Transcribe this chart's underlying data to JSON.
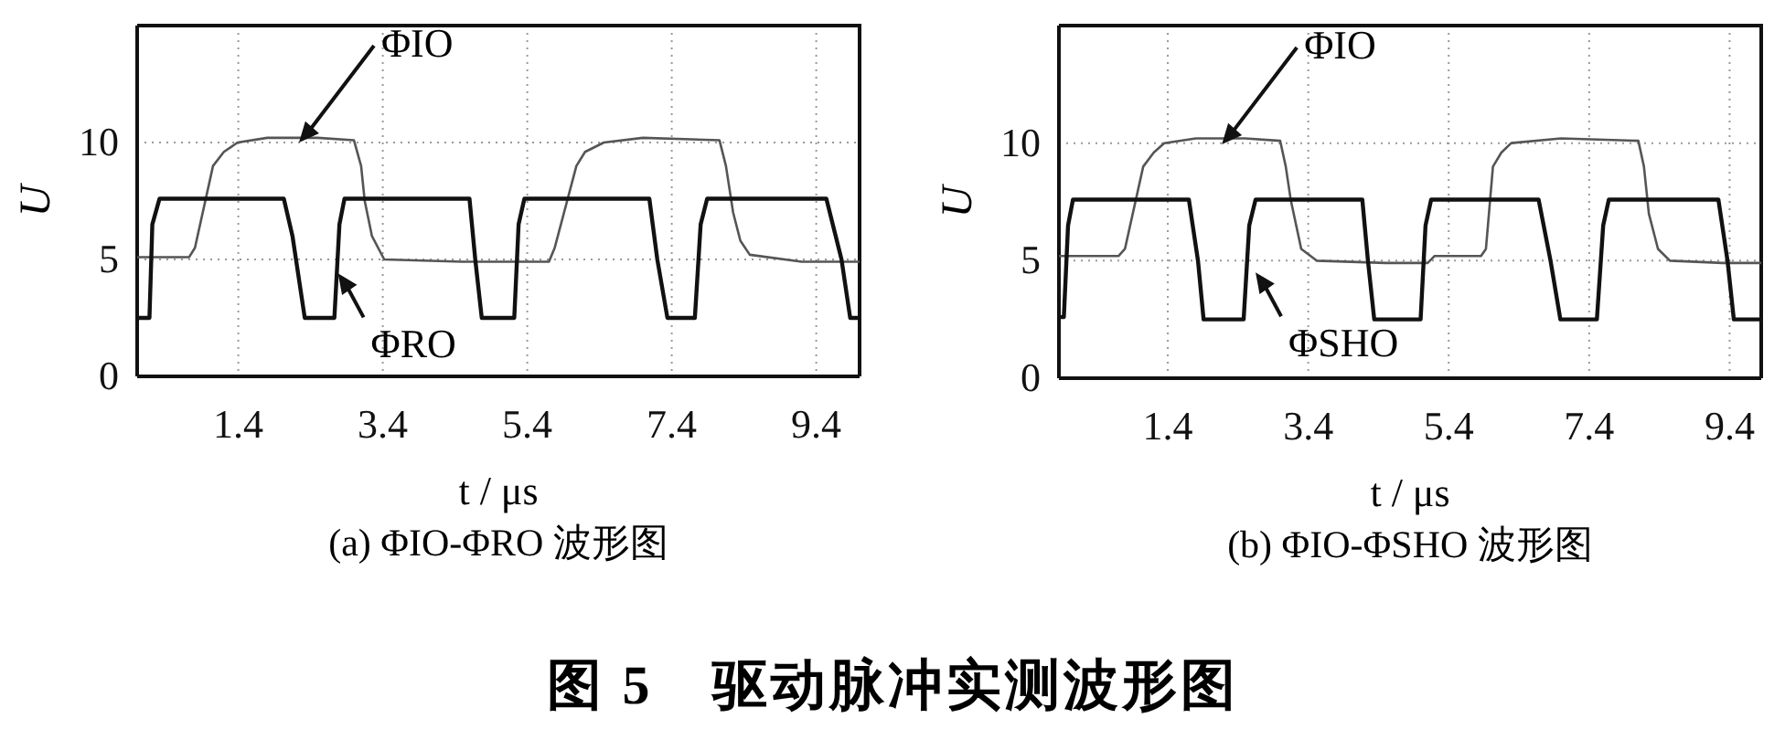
{
  "chart_data": [
    {
      "type": "line",
      "title": "(a) ΦIO-ΦRO 波形图",
      "xlabel": "t / μs",
      "ylabel": "U",
      "xlim": [
        0,
        10
      ],
      "xticks": [
        1.4,
        3.4,
        5.4,
        7.4,
        9.4
      ],
      "ylim": [
        0,
        15
      ],
      "yticks": [
        0,
        5,
        10
      ],
      "grid": true,
      "line_style": "solid",
      "series": [
        {
          "color": "#555555",
          "x": [
            0,
            0.72,
            0.8,
            1.05,
            1.2,
            1.39,
            1.8,
            2.5,
            3.0,
            3.1,
            3.15,
            3.25,
            3.42,
            4.5,
            5.7,
            5.78,
            6.08,
            6.2,
            6.46,
            7.0,
            8.06,
            8.15,
            8.25,
            8.35,
            8.48,
            9.2,
            10
          ],
          "values": [
            5.1,
            5.1,
            5.5,
            9,
            9.6,
            10,
            10.2,
            10.2,
            10.1,
            9,
            7.5,
            6,
            5.0,
            4.9,
            4.9,
            5.5,
            9,
            9.6,
            10,
            10.2,
            10.1,
            9,
            7,
            5.8,
            5.2,
            4.9,
            4.9
          ]
        },
        {
          "color": "#111111",
          "x": [
            0,
            0.17,
            0.21,
            0.31,
            2.03,
            2.15,
            2.32,
            2.73,
            2.8,
            2.87,
            4.6,
            4.68,
            4.77,
            5.22,
            5.28,
            5.36,
            7.09,
            7.2,
            7.34,
            7.72,
            7.8,
            7.89,
            9.54,
            9.75,
            9.87,
            10
          ],
          "values": [
            2.5,
            2.5,
            6.5,
            7.6,
            7.6,
            6,
            2.5,
            2.5,
            6.5,
            7.6,
            7.6,
            5,
            2.5,
            2.5,
            6.5,
            7.6,
            7.6,
            5,
            2.5,
            2.5,
            6.5,
            7.6,
            7.6,
            5,
            2.5,
            2.5
          ]
        }
      ],
      "annotations": [
        {
          "text": "ΦIO",
          "x": 2.24,
          "y": 10.0
        },
        {
          "text": "ΦRO",
          "x": 2.78,
          "y": 4.4
        },
        "图 5　驱动脉冲实测波形图"
      ]
    },
    {
      "type": "line",
      "title": "(b) ΦIO-ΦSHO  波形图",
      "xlabel": "t / μs",
      "ylabel": "U",
      "xlim": [
        -0.15,
        9.85
      ],
      "xticks": [
        1.4,
        3.4,
        5.4,
        7.4,
        9.4
      ],
      "ylim": [
        0,
        15
      ],
      "yticks": [
        0,
        5,
        10
      ],
      "grid": true,
      "line_style": "solid",
      "series": [
        {
          "color": "#555555",
          "x": [
            -0.15,
            0.7,
            0.79,
            1.05,
            1.2,
            1.35,
            1.8,
            2.5,
            3.0,
            3.08,
            3.15,
            3.3,
            3.52,
            4.5,
            5.1,
            5.2,
            5.86,
            5.93,
            6.03,
            6.15,
            6.29,
            7.0,
            8.1,
            8.18,
            8.25,
            8.38,
            8.55,
            9.3,
            9.85
          ],
          "values": [
            5.2,
            5.2,
            5.5,
            9,
            9.6,
            10,
            10.2,
            10.2,
            10.1,
            9,
            7.6,
            5.5,
            5.0,
            4.9,
            4.9,
            5.2,
            5.2,
            5.5,
            9,
            9.6,
            10,
            10.2,
            10.1,
            9,
            7,
            5.5,
            5.0,
            4.9,
            4.9
          ]
        },
        {
          "color": "#111111",
          "x": [
            -0.15,
            -0.08,
            -0.02,
            0.05,
            1.7,
            1.83,
            1.91,
            2.48,
            2.56,
            2.65,
            4.17,
            4.25,
            4.34,
            5.0,
            5.07,
            5.15,
            6.68,
            6.85,
            6.99,
            7.51,
            7.6,
            7.68,
            9.24,
            9.37,
            9.46,
            9.85
          ],
          "values": [
            2.6,
            2.6,
            6.5,
            7.6,
            7.6,
            5,
            2.5,
            2.5,
            6.5,
            7.6,
            7.6,
            5,
            2.5,
            2.5,
            6.5,
            7.6,
            7.6,
            5,
            2.5,
            2.5,
            6.5,
            7.6,
            7.6,
            5,
            2.5,
            2.5
          ]
        }
      ],
      "annotations": [
        {
          "text": "ΦIO",
          "x": 2.17,
          "y": 9.95
        },
        {
          "text": "ΦSHO",
          "x": 2.65,
          "y": 4.5
        }
      ]
    }
  ]
}
